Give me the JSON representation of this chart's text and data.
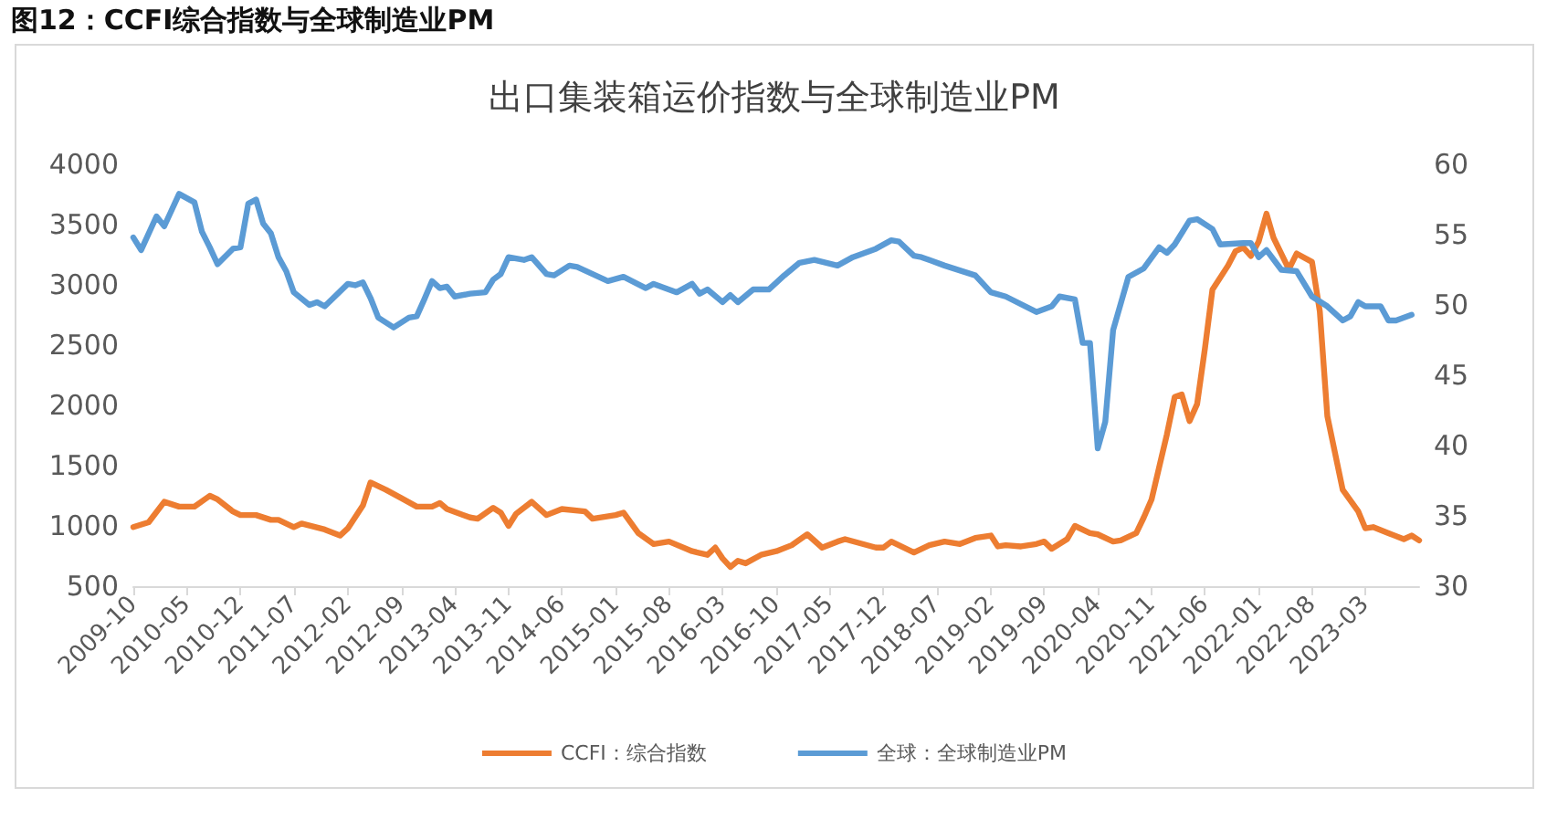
{
  "chart_data": {
    "type": "line",
    "subtitle": "图12：CCFI综合指数与全球制造业PM",
    "title": "出口集装箱运价指数与全球制造业PM",
    "xlim": [
      "2009-10",
      "2023-10"
    ],
    "xticks": [
      "2009-10",
      "2010-05",
      "2010-12",
      "2011-07",
      "2012-02",
      "2012-09",
      "2013-04",
      "2013-11",
      "2014-06",
      "2015-01",
      "2015-08",
      "2016-03",
      "2016-10",
      "2017-05",
      "2017-12",
      "2018-07",
      "2019-02",
      "2019-09",
      "2020-04",
      "2020-11",
      "2021-06",
      "2022-01",
      "2022-08",
      "2023-03"
    ],
    "ylim": [
      500,
      4000
    ],
    "yticks": [
      500,
      1000,
      1500,
      2000,
      2500,
      3000,
      3500,
      4000
    ],
    "y2lim": [
      30,
      60
    ],
    "y2ticks": [
      30,
      35,
      40,
      45,
      50,
      55,
      60
    ],
    "grid": false,
    "legend": "bottom",
    "marker": "none",
    "line_style": "solid",
    "series": [
      {
        "name": "CCFI：综合指数",
        "color": "#ed7d31",
        "x": [
          "2009-10",
          "2009-12",
          "2010-02",
          "2010-04",
          "2010-06",
          "2010-08",
          "2010-09",
          "2010-11",
          "2010-12",
          "2011-02",
          "2011-04",
          "2011-05",
          "2011-07",
          "2011-08",
          "2011-11",
          "2012-01",
          "2012-02",
          "2012-04",
          "2012-05",
          "2012-07",
          "2012-09",
          "2012-11",
          "2013-01",
          "2013-02",
          "2013-03",
          "2013-06",
          "2013-07",
          "2013-09",
          "2013-10",
          "2013-11",
          "2013-12",
          "2014-02",
          "2014-04",
          "2014-06",
          "2014-09",
          "2014-10",
          "2015-01",
          "2015-02",
          "2015-04",
          "2015-06",
          "2015-08",
          "2015-11",
          "2016-01",
          "2016-02",
          "2016-03",
          "2016-04",
          "2016-05",
          "2016-06",
          "2016-08",
          "2016-10",
          "2016-12",
          "2017-02",
          "2017-04",
          "2017-06",
          "2017-07",
          "2017-11",
          "2017-12",
          "2018-01",
          "2018-04",
          "2018-06",
          "2018-08",
          "2018-10",
          "2018-12",
          "2019-02",
          "2019-03",
          "2019-04",
          "2019-06",
          "2019-08",
          "2019-09",
          "2019-10",
          "2019-12",
          "2020-01",
          "2020-03",
          "2020-04",
          "2020-06",
          "2020-07",
          "2020-09",
          "2020-10",
          "2020-11",
          "2021-01",
          "2021-02",
          "2021-03",
          "2021-04",
          "2021-05",
          "2021-06",
          "2021-07",
          "2021-09",
          "2021-10",
          "2021-11",
          "2021-12",
          "2022-01",
          "2022-02",
          "2022-03",
          "2022-05",
          "2022-06",
          "2022-08",
          "2022-09",
          "2022-10",
          "2022-12",
          "2023-02",
          "2023-03",
          "2023-04",
          "2023-06",
          "2023-08",
          "2023-09",
          "2023-10"
        ],
        "values": [
          990,
          1030,
          1200,
          1160,
          1160,
          1250,
          1220,
          1120,
          1090,
          1090,
          1050,
          1050,
          990,
          1020,
          970,
          920,
          980,
          1170,
          1360,
          1300,
          1230,
          1160,
          1160,
          1190,
          1140,
          1070,
          1060,
          1150,
          1110,
          1000,
          1100,
          1200,
          1090,
          1140,
          1120,
          1060,
          1090,
          1110,
          940,
          850,
          870,
          790,
          760,
          820,
          730,
          660,
          710,
          690,
          760,
          790,
          840,
          930,
          820,
          870,
          890,
          820,
          820,
          870,
          780,
          840,
          870,
          850,
          900,
          920,
          830,
          840,
          830,
          850,
          870,
          810,
          890,
          1000,
          940,
          930,
          870,
          880,
          940,
          1070,
          1220,
          1760,
          2070,
          2090,
          1870,
          2010,
          2470,
          2960,
          3160,
          3280,
          3310,
          3240,
          3360,
          3590,
          3390,
          3130,
          3260,
          3190,
          2780,
          1910,
          1300,
          1120,
          980,
          990,
          940,
          890,
          920,
          880
        ]
      },
      {
        "name": "全球：全球制造业PM",
        "color": "#5b9bd5",
        "axis": "y2",
        "x": [
          "2009-10",
          "2009-11",
          "2010-01",
          "2010-02",
          "2010-04",
          "2010-06",
          "2010-07",
          "2010-08",
          "2010-09",
          "2010-11",
          "2010-12",
          "2011-01",
          "2011-02",
          "2011-03",
          "2011-04",
          "2011-05",
          "2011-06",
          "2011-07",
          "2011-09",
          "2011-10",
          "2011-11",
          "2012-02",
          "2012-03",
          "2012-04",
          "2012-05",
          "2012-06",
          "2012-08",
          "2012-10",
          "2012-11",
          "2012-12",
          "2013-01",
          "2013-02",
          "2013-03",
          "2013-04",
          "2013-06",
          "2013-08",
          "2013-09",
          "2013-10",
          "2013-11",
          "2014-01",
          "2014-02",
          "2014-04",
          "2014-05",
          "2014-07",
          "2014-08",
          "2014-10",
          "2014-12",
          "2015-02",
          "2015-05",
          "2015-06",
          "2015-09",
          "2015-11",
          "2015-12",
          "2016-01",
          "2016-03",
          "2016-04",
          "2016-05",
          "2016-07",
          "2016-09",
          "2016-11",
          "2017-01",
          "2017-03",
          "2017-06",
          "2017-08",
          "2017-11",
          "2018-01",
          "2018-02",
          "2018-04",
          "2018-05",
          "2018-08",
          "2018-12",
          "2019-02",
          "2019-04",
          "2019-08",
          "2019-10",
          "2019-11",
          "2020-01",
          "2020-02",
          "2020-03",
          "2020-04",
          "2020-05",
          "2020-06",
          "2020-08",
          "2020-10",
          "2020-12",
          "2021-01",
          "2021-02",
          "2021-04",
          "2021-05",
          "2021-07",
          "2021-08",
          "2021-11",
          "2021-12",
          "2022-01",
          "2022-02",
          "2022-04",
          "2022-06",
          "2022-08",
          "2022-10",
          "2022-12",
          "2023-01",
          "2023-02",
          "2023-03",
          "2023-05",
          "2023-06",
          "2023-07",
          "2023-09"
        ],
        "values": [
          54.8,
          53.9,
          56.3,
          55.6,
          57.9,
          57.3,
          55.2,
          54.1,
          52.9,
          54.0,
          54.1,
          57.2,
          57.5,
          55.8,
          55.1,
          53.4,
          52.4,
          50.9,
          50.0,
          50.2,
          49.9,
          51.5,
          51.4,
          51.6,
          50.5,
          49.1,
          48.4,
          49.1,
          49.2,
          50.4,
          51.7,
          51.2,
          51.3,
          50.6,
          50.8,
          50.9,
          51.8,
          52.2,
          53.4,
          53.2,
          53.4,
          52.2,
          52.1,
          52.8,
          52.7,
          52.2,
          51.7,
          52.0,
          51.2,
          51.5,
          50.9,
          51.5,
          50.8,
          51.1,
          50.2,
          50.7,
          50.2,
          51.1,
          51.1,
          52.1,
          53.0,
          53.2,
          52.8,
          53.4,
          54.0,
          54.6,
          54.5,
          53.5,
          53.4,
          52.8,
          52.1,
          50.9,
          50.6,
          49.5,
          49.9,
          50.6,
          50.4,
          47.3,
          47.3,
          39.8,
          41.7,
          48.2,
          52.0,
          52.6,
          54.1,
          53.7,
          54.3,
          56.0,
          56.1,
          55.4,
          54.3,
          54.4,
          54.4,
          53.4,
          53.9,
          52.5,
          52.4,
          50.6,
          49.9,
          48.9,
          49.2,
          50.2,
          49.9,
          49.9,
          48.9,
          48.9,
          49.3
        ]
      }
    ]
  }
}
